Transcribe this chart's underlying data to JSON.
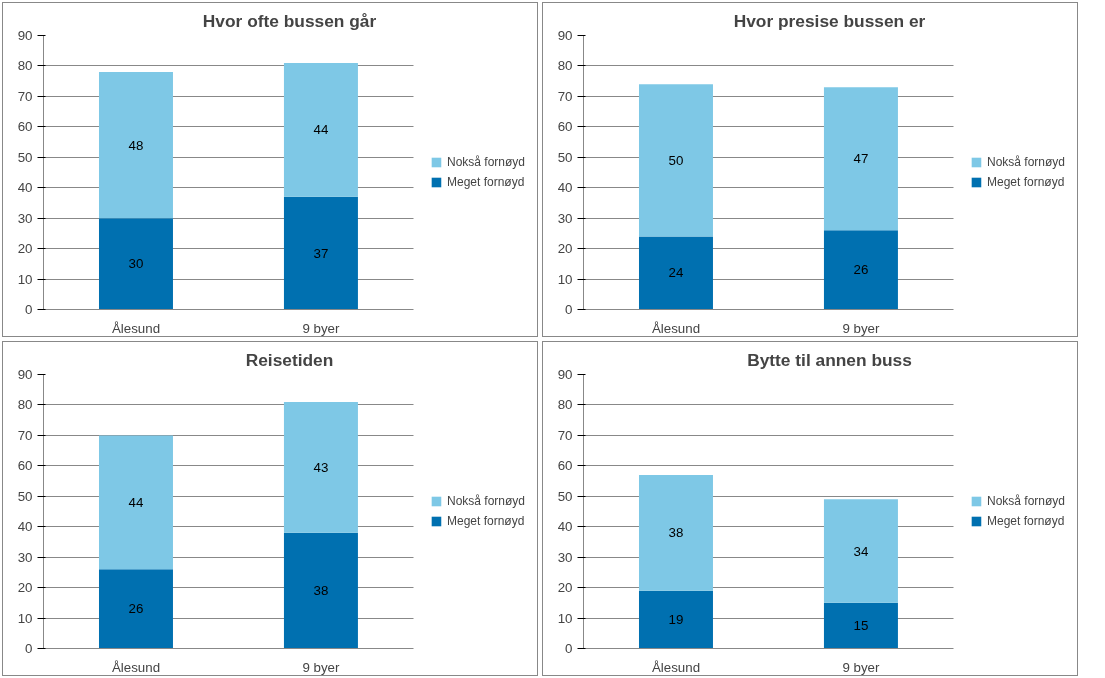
{
  "chart_data": [
    {
      "type": "bar",
      "title": "Hvor ofte bussen går",
      "categories": [
        "Ålesund",
        "9 byer"
      ],
      "stacked": true,
      "data_labels": true,
      "ylim": [
        0,
        90
      ],
      "yticks": [
        0,
        10,
        20,
        30,
        40,
        50,
        60,
        70,
        80,
        90
      ],
      "grid": "y",
      "legend": "right",
      "series": [
        {
          "name": "Meget fornøyd",
          "color": "#0070b0",
          "values": [
            30,
            37
          ]
        },
        {
          "name": "Nokså fornøyd",
          "color": "#7ec8e6",
          "values": [
            48,
            44
          ]
        }
      ]
    },
    {
      "type": "bar",
      "title": "Hvor presise bussen er",
      "categories": [
        "Ålesund",
        "9 byer"
      ],
      "stacked": true,
      "data_labels": true,
      "ylim": [
        0,
        90
      ],
      "yticks": [
        0,
        10,
        20,
        30,
        40,
        50,
        60,
        70,
        80,
        90
      ],
      "grid": "y",
      "legend": "right",
      "series": [
        {
          "name": "Meget fornøyd",
          "color": "#0070b0",
          "values": [
            24,
            26
          ]
        },
        {
          "name": "Nokså fornøyd",
          "color": "#7ec8e6",
          "values": [
            50,
            47
          ]
        }
      ]
    },
    {
      "type": "bar",
      "title": "Reisetiden",
      "categories": [
        "Ålesund",
        "9 byer"
      ],
      "stacked": true,
      "data_labels": true,
      "ylim": [
        0,
        90
      ],
      "yticks": [
        0,
        10,
        20,
        30,
        40,
        50,
        60,
        70,
        80,
        90
      ],
      "grid": "y",
      "legend": "right",
      "series": [
        {
          "name": "Meget fornøyd",
          "color": "#0070b0",
          "values": [
            26,
            38
          ]
        },
        {
          "name": "Nokså fornøyd",
          "color": "#7ec8e6",
          "values": [
            44,
            43
          ]
        }
      ]
    },
    {
      "type": "bar",
      "title": "Bytte til annen buss",
      "categories": [
        "Ålesund",
        "9 byer"
      ],
      "stacked": true,
      "data_labels": true,
      "ylim": [
        0,
        90
      ],
      "yticks": [
        0,
        10,
        20,
        30,
        40,
        50,
        60,
        70,
        80,
        90
      ],
      "grid": "y",
      "legend": "right",
      "series": [
        {
          "name": "Meget fornøyd",
          "color": "#0070b0",
          "values": [
            19,
            15
          ]
        },
        {
          "name": "Nokså fornøyd",
          "color": "#7ec8e6",
          "values": [
            38,
            34
          ]
        }
      ]
    }
  ]
}
